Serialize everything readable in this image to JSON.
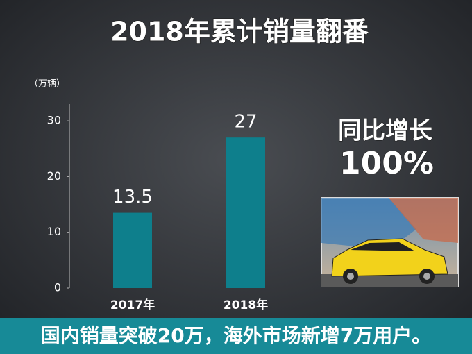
{
  "chart_data": {
    "type": "bar",
    "title": "2018年累计销量翻番",
    "y_axis_label": "（万辆）",
    "categories": [
      "2017年",
      "2018年"
    ],
    "values": [
      13.5,
      27
    ],
    "color": "#0e7f8c",
    "ylim": [
      0,
      33
    ],
    "yticks": [
      0,
      10,
      20,
      30
    ],
    "grid": false,
    "annotations": [
      "同比增长",
      "100%"
    ],
    "footer": "国内销量突破20万，海外市场新增7万用户。"
  }
}
